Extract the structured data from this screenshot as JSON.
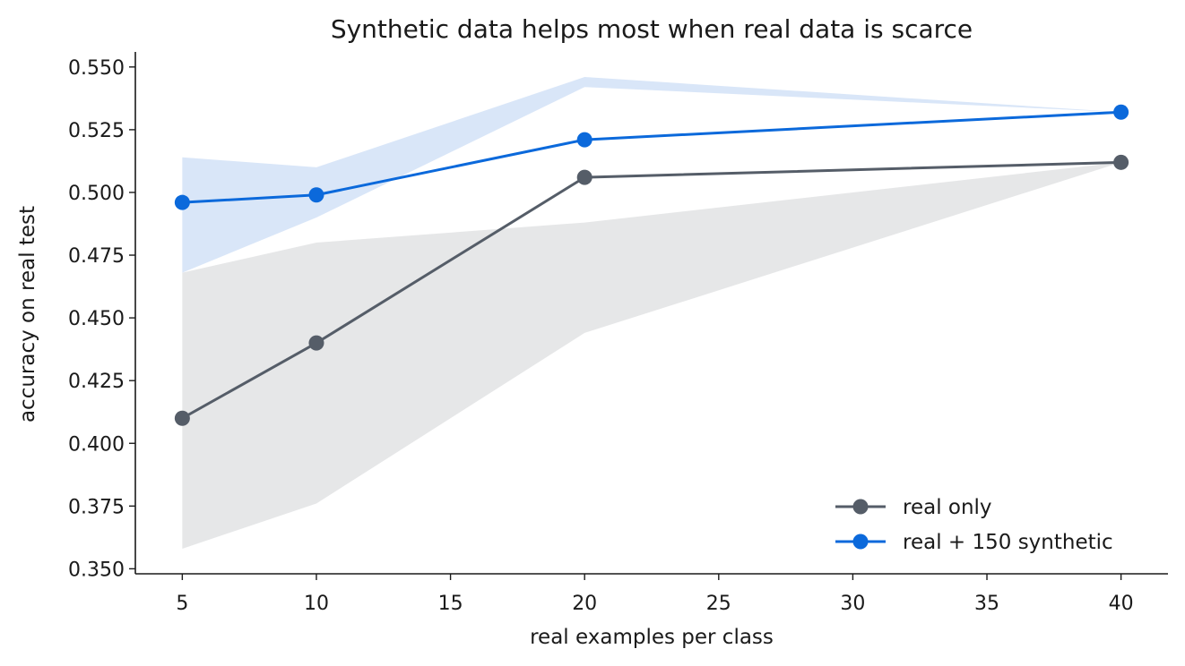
{
  "chart_data": {
    "type": "line",
    "title": "Synthetic data helps most when real data is scarce",
    "xlabel": "real examples per class",
    "ylabel": "accuracy on real test",
    "xlim": [
      3.25,
      41.75
    ],
    "ylim": [
      0.348,
      0.556
    ],
    "xticks": [
      5,
      10,
      15,
      20,
      25,
      30,
      35,
      40
    ],
    "yticks": [
      0.35,
      0.375,
      0.4,
      0.425,
      0.45,
      0.475,
      0.5,
      0.525,
      0.55
    ],
    "ytick_format": 3,
    "grid": false,
    "legend_position": "lower-right",
    "series": [
      {
        "name": "real only",
        "color": "#555d68",
        "band_color": "#c7c9cc",
        "x": [
          5,
          10,
          20,
          40
        ],
        "y": [
          0.41,
          0.44,
          0.506,
          0.512
        ],
        "lower": [
          0.358,
          0.376,
          0.444,
          0.512
        ],
        "upper": [
          0.468,
          0.48,
          0.488,
          0.512
        ]
      },
      {
        "name": "real + 150 synthetic",
        "color": "#0b69db",
        "band_color": "#b9d1f3",
        "x": [
          5,
          10,
          20,
          40
        ],
        "y": [
          0.496,
          0.499,
          0.521,
          0.532
        ],
        "lower": [
          0.468,
          0.49,
          0.542,
          0.532
        ],
        "upper": [
          0.514,
          0.51,
          0.546,
          0.532
        ]
      }
    ]
  }
}
